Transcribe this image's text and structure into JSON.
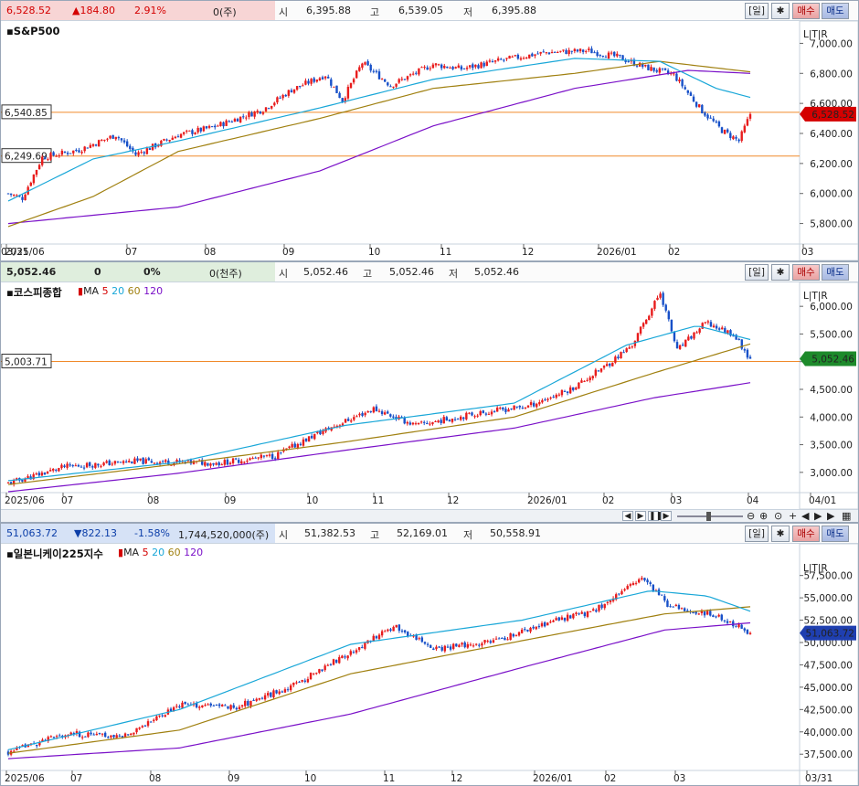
{
  "panels": [
    {
      "quote": {
        "last": "6,528.52",
        "change": "▲184.80",
        "pct": "2.91%",
        "vol": "0(주)",
        "open_lbl": "시",
        "open": "6,395.88",
        "high_lbl": "고",
        "high": "6,539.05",
        "low_lbl": "저",
        "low": "6,395.88",
        "dir": "up"
      },
      "controls": {
        "period": "[일]",
        "buy": "매수",
        "sell": "매도"
      },
      "title": "S&P500",
      "ma_legend": [],
      "right_tag": "6,528.52",
      "left_tags": [
        "6,540.85",
        "6,249.69"
      ]
    },
    {
      "quote": {
        "last": "5,052.46",
        "change": "0",
        "pct": "0%",
        "vol": "0(천주)",
        "open_lbl": "시",
        "open": "5,052.46",
        "high_lbl": "고",
        "high": "5,052.46",
        "low_lbl": "저",
        "low": "5,052.46",
        "dir": "zero"
      },
      "controls": {
        "period": "[일]",
        "buy": "매수",
        "sell": "매도"
      },
      "title": "코스피종합",
      "ma_legend": [
        "MA",
        "5",
        "20",
        "60",
        "120"
      ],
      "right_tag": "5,052.46",
      "left_tags": [
        "5,003.71"
      ]
    },
    {
      "quote": {
        "last": "51,063.72",
        "change": "▼822.13",
        "pct": "-1.58%",
        "vol": "1,744,520,000(주)",
        "open_lbl": "시",
        "open": "51,382.53",
        "high_lbl": "고",
        "high": "52,169.01",
        "low_lbl": "저",
        "low": "50,558.91",
        "dir": "dn"
      },
      "controls": {
        "period": "[일]",
        "buy": "매수",
        "sell": "매도"
      },
      "title": "일본니케이225지수",
      "ma_legend": [
        "MA",
        "5",
        "20",
        "60",
        "120"
      ],
      "right_tag": "51,063.72",
      "left_tags": []
    }
  ],
  "ma_colors": {
    "ma5": "#d40000",
    "ma20": "#19a7d8",
    "ma60": "#a08010",
    "ma120": "#7a10c8"
  },
  "candle_colors": {
    "up": "#e81c1c",
    "down": "#1750c8"
  },
  "chart_data": [
    {
      "type": "candlestick",
      "title": "S&P500",
      "y_ticks": [
        "7,000.00",
        "6,800.00",
        "6,600.00",
        "6,400.00",
        "6,200.00",
        "6,000.00",
        "5,800.00"
      ],
      "ylim": [
        5700,
        7100
      ],
      "x_ticks": [
        "2025/06",
        "07",
        "08",
        "09",
        "10",
        "11",
        "12",
        "2026/01",
        "02",
        "03",
        "03/31"
      ],
      "hlines": [
        {
          "value": 6540.85,
          "label": "6,540.85"
        },
        {
          "value": 6249.69,
          "label": "6,249.69"
        }
      ],
      "last": 6528.52,
      "anchors": [
        [
          0,
          6000
        ],
        [
          5,
          5970
        ],
        [
          12,
          6240
        ],
        [
          25,
          6290
        ],
        [
          38,
          6390
        ],
        [
          45,
          6260
        ],
        [
          60,
          6390
        ],
        [
          72,
          6440
        ],
        [
          90,
          6560
        ],
        [
          100,
          6690
        ],
        [
          112,
          6790
        ],
        [
          118,
          6620
        ],
        [
          125,
          6870
        ],
        [
          135,
          6720
        ],
        [
          150,
          6860
        ],
        [
          160,
          6830
        ],
        [
          175,
          6890
        ],
        [
          190,
          6940
        ],
        [
          205,
          6950
        ],
        [
          215,
          6910
        ],
        [
          225,
          6840
        ],
        [
          235,
          6790
        ],
        [
          245,
          6550
        ],
        [
          252,
          6420
        ],
        [
          258,
          6350
        ],
        [
          262,
          6528
        ]
      ],
      "ma120_anchors": [
        [
          0,
          5800
        ],
        [
          60,
          5910
        ],
        [
          110,
          6150
        ],
        [
          150,
          6450
        ],
        [
          200,
          6700
        ],
        [
          240,
          6820
        ],
        [
          262,
          6800
        ]
      ],
      "ma60_anchors": [
        [
          0,
          5780
        ],
        [
          30,
          5980
        ],
        [
          60,
          6280
        ],
        [
          110,
          6500
        ],
        [
          150,
          6700
        ],
        [
          200,
          6800
        ],
        [
          230,
          6880
        ],
        [
          262,
          6810
        ]
      ],
      "ma20_anchors": [
        [
          0,
          5950
        ],
        [
          30,
          6230
        ],
        [
          60,
          6350
        ],
        [
          110,
          6570
        ],
        [
          150,
          6760
        ],
        [
          200,
          6900
        ],
        [
          230,
          6880
        ],
        [
          250,
          6700
        ],
        [
          262,
          6640
        ]
      ]
    },
    {
      "type": "candlestick",
      "title": "코스피종합",
      "y_ticks": [
        "6,000.00",
        "5,500.00",
        "5,000.00",
        "4,500.00",
        "4,000.00",
        "3,500.00",
        "3,000.00"
      ],
      "ylim": [
        2700,
        6300
      ],
      "x_ticks": [
        "2025/06",
        "07",
        "08",
        "09",
        "10",
        "11",
        "12",
        "2026/01",
        "02",
        "03",
        "04",
        "04/01"
      ],
      "hlines": [
        {
          "value": 5003.71,
          "label": "5,003.71"
        }
      ],
      "last": 5052.46,
      "anchors": [
        [
          0,
          2800
        ],
        [
          20,
          3100
        ],
        [
          45,
          3200
        ],
        [
          75,
          3170
        ],
        [
          95,
          3300
        ],
        [
          110,
          3700
        ],
        [
          130,
          4150
        ],
        [
          145,
          3850
        ],
        [
          165,
          4050
        ],
        [
          185,
          4200
        ],
        [
          200,
          4500
        ],
        [
          212,
          4900
        ],
        [
          222,
          5300
        ],
        [
          232,
          6250
        ],
        [
          238,
          5200
        ],
        [
          248,
          5700
        ],
        [
          258,
          5500
        ],
        [
          264,
          5052
        ]
      ],
      "ma120_anchors": [
        [
          0,
          2650
        ],
        [
          60,
          2980
        ],
        [
          120,
          3400
        ],
        [
          180,
          3800
        ],
        [
          230,
          4350
        ],
        [
          264,
          4620
        ]
      ],
      "ma60_anchors": [
        [
          0,
          2780
        ],
        [
          60,
          3150
        ],
        [
          120,
          3550
        ],
        [
          180,
          4000
        ],
        [
          230,
          4800
        ],
        [
          264,
          5320
        ]
      ],
      "ma20_anchors": [
        [
          0,
          2850
        ],
        [
          60,
          3180
        ],
        [
          120,
          3850
        ],
        [
          180,
          4250
        ],
        [
          220,
          5300
        ],
        [
          245,
          5650
        ],
        [
          264,
          5400
        ]
      ]
    },
    {
      "type": "candlestick",
      "title": "일본니케이225지수",
      "y_ticks": [
        "57,500.00",
        "55,000.00",
        "52,500.00",
        "50,000.00",
        "47,500.00",
        "45,000.00",
        "42,500.00",
        "40,000.00",
        "37,500.00"
      ],
      "ylim": [
        36500,
        59000
      ],
      "x_ticks": [
        "2025/06",
        "07",
        "08",
        "09",
        "10",
        "11",
        "12",
        "2026/01",
        "02",
        "03",
        "03/31"
      ],
      "hlines": [],
      "last": 51063.72,
      "anchors": [
        [
          0,
          37700
        ],
        [
          20,
          39800
        ],
        [
          40,
          39500
        ],
        [
          60,
          43000
        ],
        [
          80,
          42800
        ],
        [
          100,
          45200
        ],
        [
          115,
          48000
        ],
        [
          135,
          51800
        ],
        [
          150,
          49300
        ],
        [
          170,
          50100
        ],
        [
          190,
          52300
        ],
        [
          205,
          53500
        ],
        [
          222,
          57200
        ],
        [
          232,
          54000
        ],
        [
          242,
          53500
        ],
        [
          252,
          52500
        ],
        [
          260,
          51063
        ]
      ],
      "ma120_anchors": [
        [
          0,
          37000
        ],
        [
          60,
          38200
        ],
        [
          120,
          42000
        ],
        [
          180,
          47200
        ],
        [
          230,
          51400
        ],
        [
          260,
          52200
        ]
      ],
      "ma60_anchors": [
        [
          0,
          37600
        ],
        [
          60,
          40200
        ],
        [
          120,
          46500
        ],
        [
          180,
          50200
        ],
        [
          230,
          53200
        ],
        [
          260,
          54000
        ]
      ],
      "ma20_anchors": [
        [
          0,
          38000
        ],
        [
          60,
          42500
        ],
        [
          120,
          49800
        ],
        [
          180,
          52500
        ],
        [
          225,
          55800
        ],
        [
          245,
          55200
        ],
        [
          260,
          53500
        ]
      ]
    }
  ]
}
